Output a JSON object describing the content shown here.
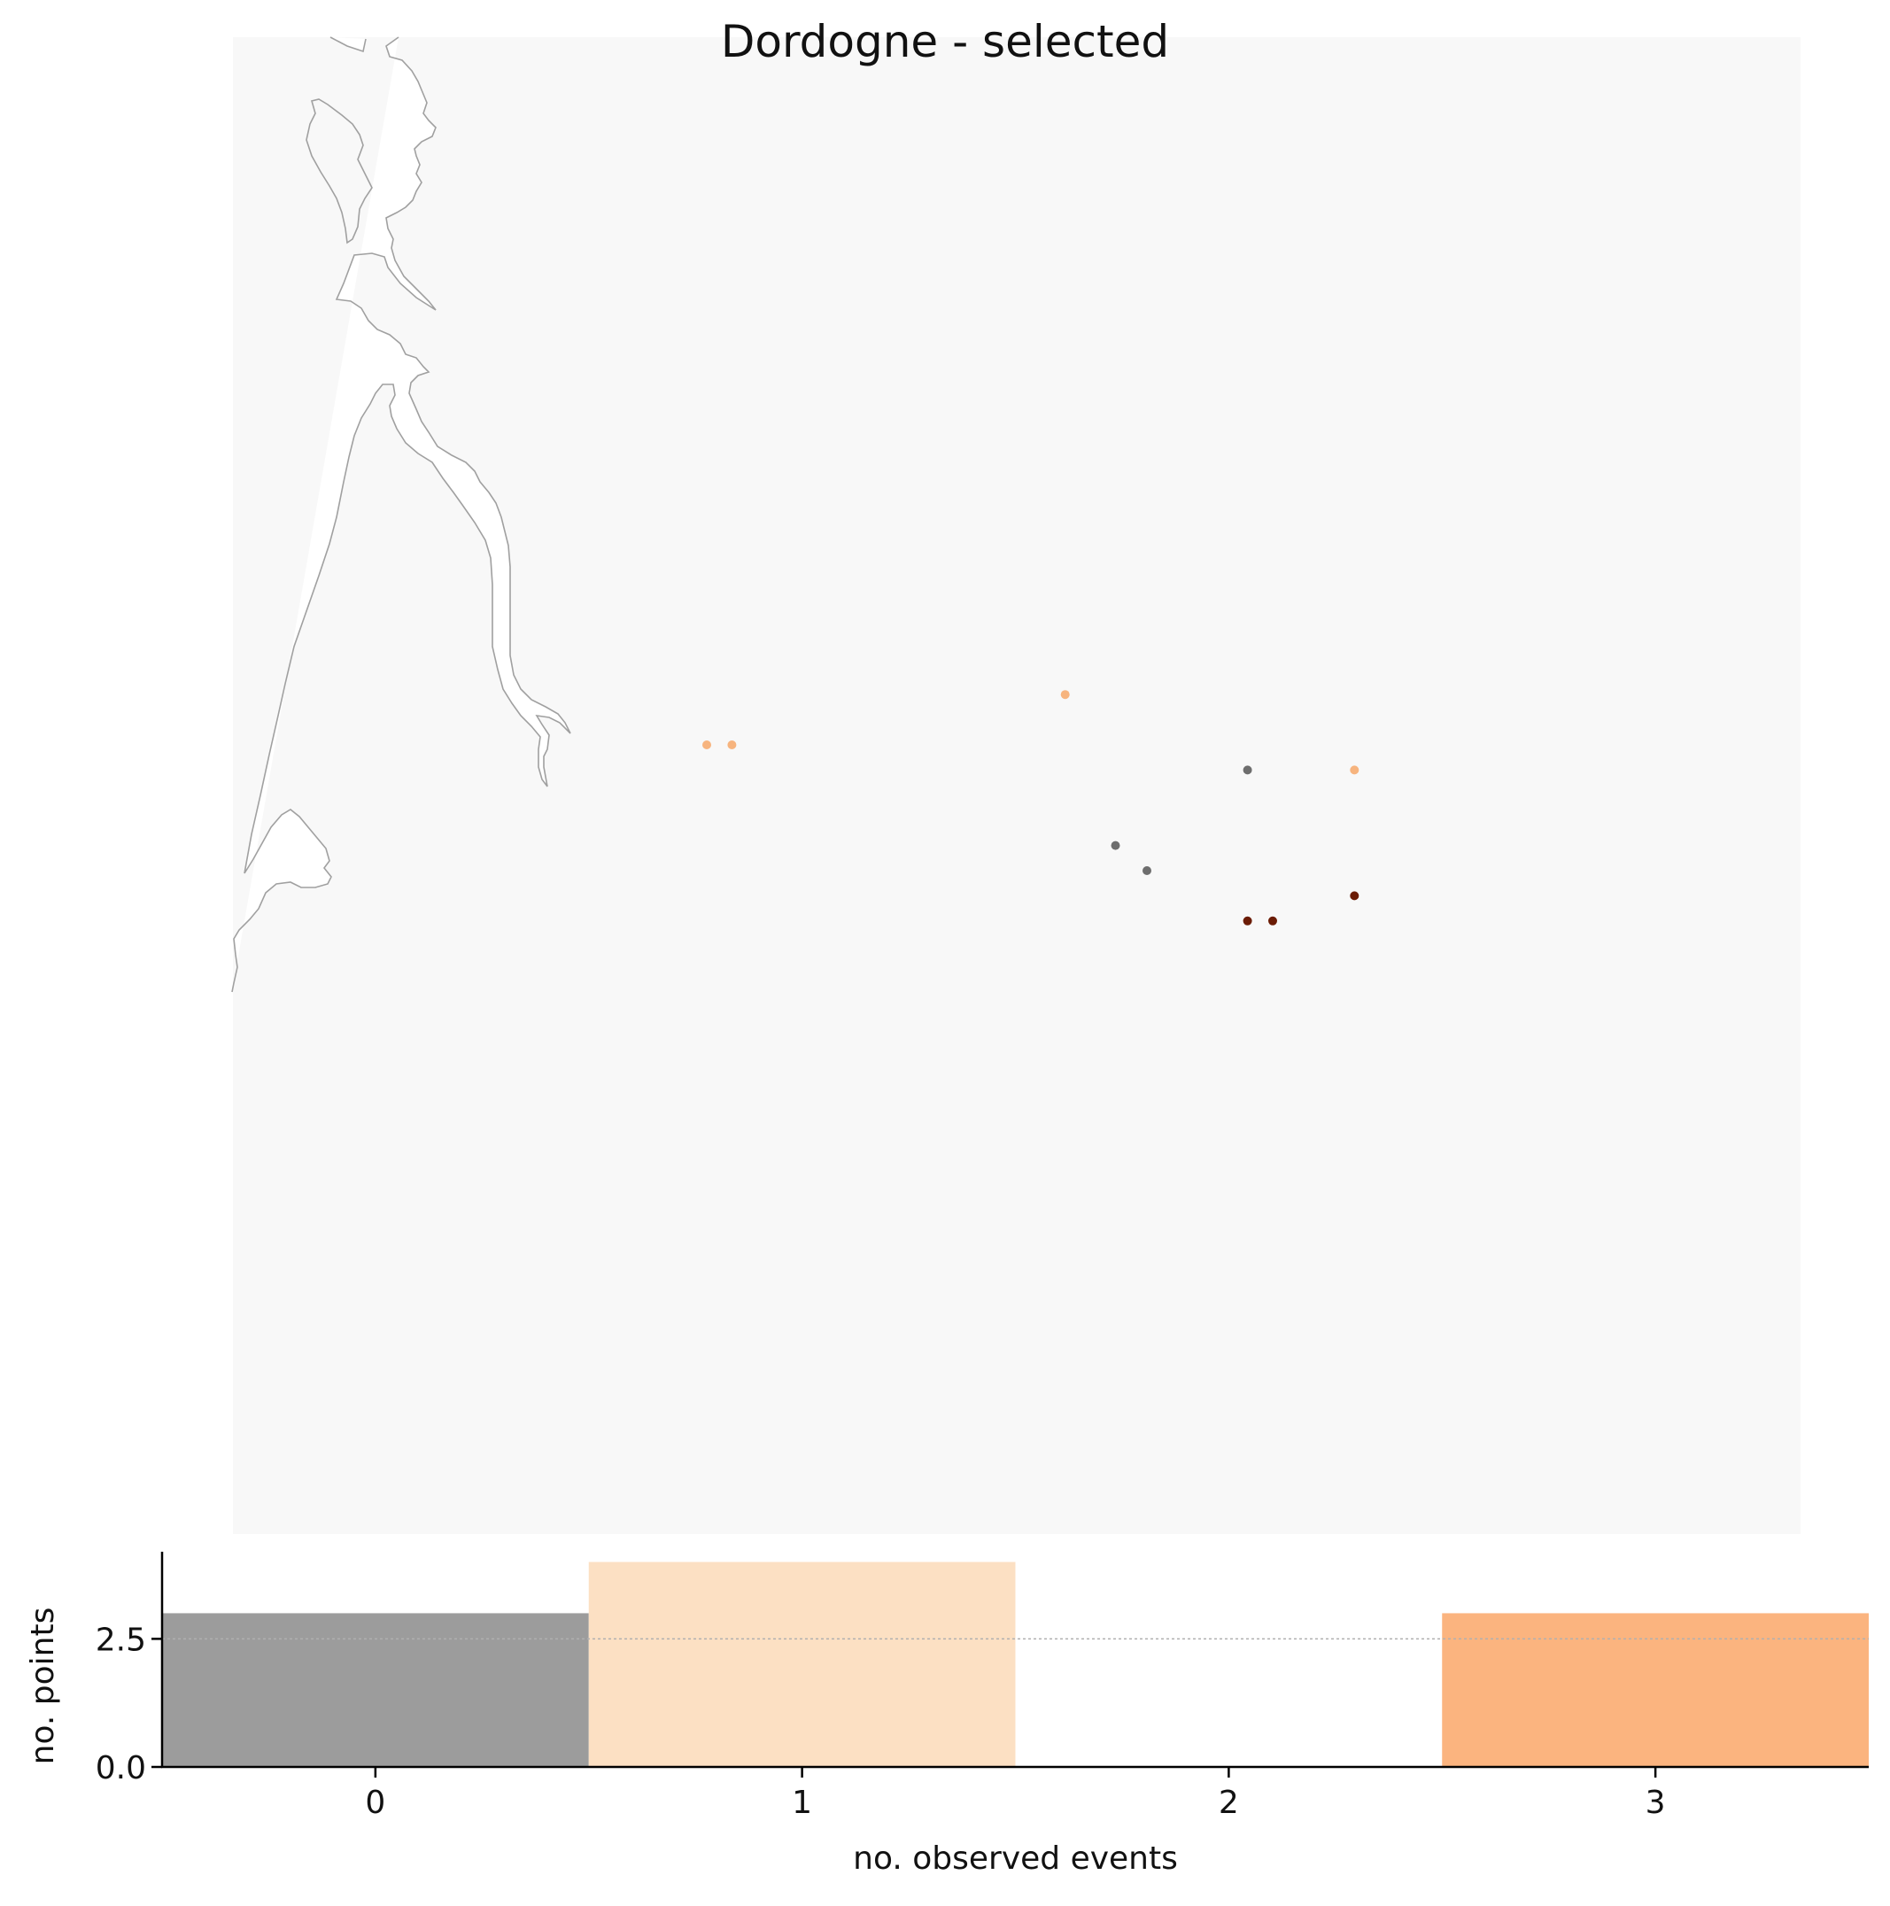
{
  "title": "Dordogne - selected",
  "colors": {
    "map_background": "#f8f8f8",
    "coastline": "#a0a0a0",
    "category_0": "#9c9c9c",
    "category_1": "#fce0c3",
    "category_3": "#fbb47f",
    "point_gray": "#6e6e6e",
    "point_light": "#f7b47e",
    "point_dark": "#6b1c05"
  },
  "map": {
    "points": [
      {
        "lon": 0.0,
        "lat": 0.0,
        "color": "point_light"
      },
      {
        "lon": 0.2,
        "lat": 0.0,
        "color": "point_light"
      },
      {
        "lon": 2.85,
        "lat": 0.4,
        "color": "point_light"
      },
      {
        "lon": 5.15,
        "lat": -0.2,
        "color": "point_light"
      },
      {
        "lon": 4.3,
        "lat": -0.2,
        "color": "point_gray"
      },
      {
        "lon": 3.25,
        "lat": -0.8,
        "color": "point_gray"
      },
      {
        "lon": 3.5,
        "lat": -1.0,
        "color": "point_gray"
      },
      {
        "lon": 5.15,
        "lat": -1.2,
        "color": "point_dark"
      },
      {
        "lon": 4.3,
        "lat": -1.4,
        "color": "point_dark"
      },
      {
        "lon": 4.5,
        "lat": -1.4,
        "color": "point_dark"
      }
    ]
  },
  "chart_data": {
    "type": "bar",
    "categories": [
      "0",
      "1",
      "2",
      "3"
    ],
    "values": [
      3,
      4,
      0,
      3
    ],
    "bar_colors": [
      "#9c9c9c",
      "#fce0c3",
      "#ffffff",
      "#fbb47f"
    ],
    "xlabel": "no. observed events",
    "ylabel": "no. points",
    "xlim": [
      -0.5,
      3.5
    ],
    "ylim": [
      0,
      4.2
    ],
    "yticks": [
      0.0,
      2.5
    ],
    "ytick_labels": [
      "0.0",
      "2.5"
    ],
    "xtick_labels": [
      "0",
      "1",
      "2",
      "3"
    ],
    "reference_line": 2.5,
    "grid": false
  }
}
